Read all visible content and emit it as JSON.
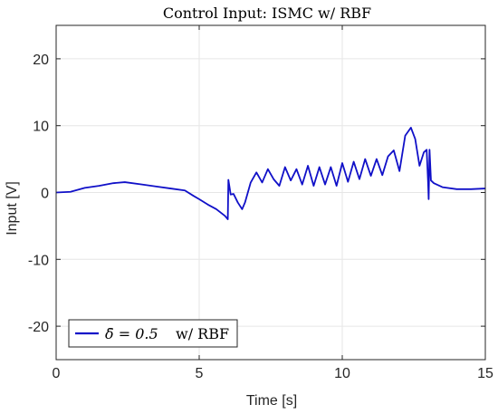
{
  "chart_data": {
    "type": "line",
    "title": "Control Input: ISMC w/ RBF",
    "xlabel": "Time [s]",
    "ylabel": "Input [V]",
    "xlim": [
      0,
      15
    ],
    "ylim": [
      -25,
      25
    ],
    "xticks": [
      0,
      5,
      10,
      15
    ],
    "yticks": [
      -20,
      -10,
      0,
      10,
      20
    ],
    "xtick_labels": [
      "0",
      "5",
      "10",
      "15"
    ],
    "ytick_labels": [
      "-20",
      "-10",
      "0",
      "10",
      "20"
    ],
    "grid": true,
    "legend": {
      "placement": "bottom-left",
      "entries": [
        {
          "series": 0,
          "label_math": "δ̄ = 0.5",
          "label_text": "w/ RBF"
        }
      ]
    },
    "colors": {
      "series": "#1010c8",
      "grid": "#e6e6e6",
      "axes": "#262626"
    },
    "series": [
      {
        "x": [
          0,
          0.5,
          1.0,
          1.5,
          2.0,
          2.4,
          3.0,
          3.5,
          4.0,
          4.5,
          4.8,
          5.0,
          5.3,
          5.6,
          5.9,
          6.0,
          6.02,
          6.1,
          6.2,
          6.35,
          6.5,
          6.6,
          6.8,
          7.0,
          7.2,
          7.4,
          7.6,
          7.8,
          8.0,
          8.2,
          8.4,
          8.6,
          8.8,
          9.0,
          9.2,
          9.4,
          9.6,
          9.8,
          10.0,
          10.2,
          10.4,
          10.6,
          10.8,
          11.0,
          11.2,
          11.4,
          11.6,
          11.8,
          12.0,
          12.2,
          12.4,
          12.55,
          12.7,
          12.85,
          12.95,
          13.0,
          13.02,
          13.05,
          13.1,
          13.2,
          13.5,
          14.0,
          14.5,
          15.0
        ],
        "y": [
          0,
          0.1,
          0.7,
          1.0,
          1.4,
          1.55,
          1.2,
          0.9,
          0.6,
          0.3,
          -0.5,
          -1.0,
          -1.8,
          -2.5,
          -3.5,
          -4.0,
          1.9,
          -0.3,
          -0.2,
          -1.5,
          -2.5,
          -1.5,
          1.5,
          3.0,
          1.5,
          3.5,
          2.0,
          1.0,
          3.8,
          1.8,
          3.5,
          1.2,
          4.0,
          1.0,
          3.8,
          1.2,
          3.8,
          1.0,
          4.4,
          1.6,
          4.6,
          2.0,
          5.0,
          2.5,
          5.0,
          2.6,
          5.4,
          6.3,
          3.2,
          8.5,
          9.7,
          8.0,
          4.0,
          6.0,
          6.4,
          1.5,
          -1.0,
          6.4,
          1.8,
          1.4,
          0.8,
          0.5,
          0.5,
          0.6
        ]
      }
    ]
  }
}
